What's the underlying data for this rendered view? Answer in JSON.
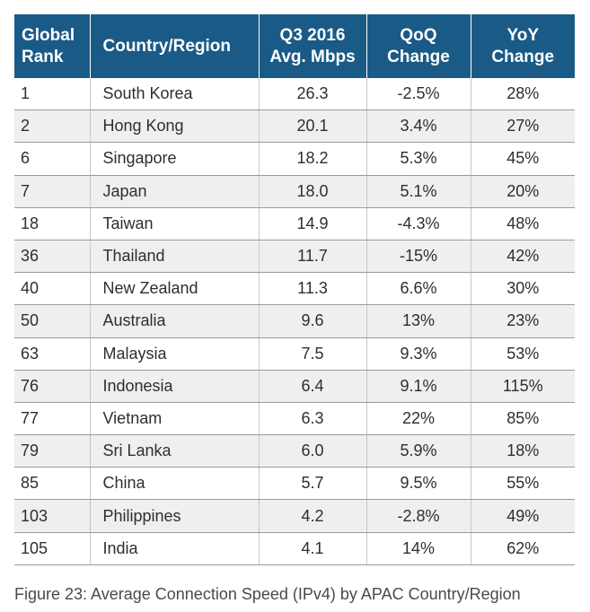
{
  "table": {
    "headers": {
      "rank": [
        "Global",
        "Rank"
      ],
      "country": "Country/Region",
      "speed": [
        "Q3 2016",
        "Avg. Mbps"
      ],
      "qoq": [
        "QoQ",
        "Change"
      ],
      "yoy": [
        "YoY",
        "Change"
      ]
    },
    "rows": [
      {
        "rank": "1",
        "country": "South Korea",
        "speed": "26.3",
        "qoq": "-2.5%",
        "yoy": "28%"
      },
      {
        "rank": "2",
        "country": "Hong Kong",
        "speed": "20.1",
        "qoq": "3.4%",
        "yoy": "27%"
      },
      {
        "rank": "6",
        "country": "Singapore",
        "speed": "18.2",
        "qoq": "5.3%",
        "yoy": "45%"
      },
      {
        "rank": "7",
        "country": "Japan",
        "speed": "18.0",
        "qoq": "5.1%",
        "yoy": "20%"
      },
      {
        "rank": "18",
        "country": "Taiwan",
        "speed": "14.9",
        "qoq": "-4.3%",
        "yoy": "48%"
      },
      {
        "rank": "36",
        "country": "Thailand",
        "speed": "11.7",
        "qoq": "-15%",
        "yoy": "42%"
      },
      {
        "rank": "40",
        "country": "New Zealand",
        "speed": "11.3",
        "qoq": "6.6%",
        "yoy": "30%"
      },
      {
        "rank": "50",
        "country": "Australia",
        "speed": "9.6",
        "qoq": "13%",
        "yoy": "23%"
      },
      {
        "rank": "63",
        "country": "Malaysia",
        "speed": "7.5",
        "qoq": "9.3%",
        "yoy": "53%"
      },
      {
        "rank": "76",
        "country": "Indonesia",
        "speed": "6.4",
        "qoq": "9.1%",
        "yoy": "115%"
      },
      {
        "rank": "77",
        "country": "Vietnam",
        "speed": "6.3",
        "qoq": "22%",
        "yoy": "85%"
      },
      {
        "rank": "79",
        "country": "Sri Lanka",
        "speed": "6.0",
        "qoq": "5.9%",
        "yoy": "18%"
      },
      {
        "rank": "85",
        "country": "China",
        "speed": "5.7",
        "qoq": "9.5%",
        "yoy": "55%"
      },
      {
        "rank": "103",
        "country": "Philippines",
        "speed": "4.2",
        "qoq": "-2.8%",
        "yoy": "49%"
      },
      {
        "rank": "105",
        "country": "India",
        "speed": "4.1",
        "qoq": "14%",
        "yoy": "62%"
      }
    ]
  },
  "caption": "Figure 23: Average Connection Speed (IPv4) by APAC Country/Region",
  "colors": {
    "header_bg": "#1a5a87",
    "header_text": "#ffffff",
    "row_alt_bg": "#efefef",
    "body_text": "#2e2e2e"
  }
}
